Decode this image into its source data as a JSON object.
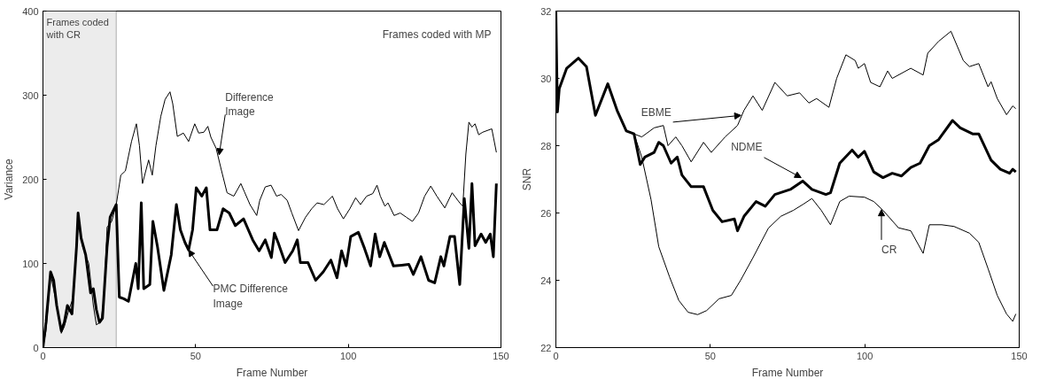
{
  "chart_data": [
    {
      "type": "line",
      "xlabel": "Frame Number",
      "ylabel": "Variance",
      "xlim": [
        0,
        150
      ],
      "ylim": [
        0,
        400
      ],
      "xticks": [
        0,
        50,
        100,
        150
      ],
      "yticks": [
        0,
        100,
        200,
        300,
        400
      ],
      "grid": false,
      "bands": [
        {
          "axis": "x",
          "from": 0,
          "to": 24,
          "label": "Frames coded with CR",
          "color": "#ececec"
        }
      ],
      "annotations": [
        "Frames coded with MP",
        {
          "text": "Difference Image",
          "x": 57.7,
          "y": 229
        },
        {
          "text": "PMC Difference Image",
          "x": 47.7,
          "y": 116
        }
      ],
      "series": [
        {
          "color": "#000000",
          "x": [
            0,
            1,
            2.5,
            4,
            6,
            7,
            8.5,
            10,
            11.5,
            13,
            15,
            16.5,
            17.5,
            19,
            20,
            21,
            22.5,
            24,
            25.5,
            27,
            29,
            30.6,
            31.6,
            32.6,
            34.6,
            35.8,
            37,
            38.6,
            40,
            41.6,
            42.5,
            44,
            46,
            47.7,
            49.7,
            51,
            52.7,
            54,
            55,
            56.7,
            58.5,
            60.3,
            62.5,
            64.8,
            66,
            67.8,
            70,
            71,
            72.8,
            74.7,
            76.5,
            78,
            80,
            81.5,
            83.7,
            86,
            88,
            89.8,
            92,
            94.8,
            96.5,
            98.4,
            100.5,
            102.4,
            104,
            106,
            108,
            109.4,
            110.5,
            112,
            113,
            115,
            117,
            119,
            121,
            123,
            125,
            127,
            129,
            131.6,
            134,
            136.5,
            137.5,
            138.5,
            139.5,
            140.5,
            141.5,
            142.7,
            144,
            145.5,
            147,
            148.5
          ],
          "values": [
            0,
            20,
            87,
            60,
            17,
            25,
            45,
            60,
            150,
            120,
            100,
            50,
            27,
            31,
            60,
            143,
            150,
            170,
            205,
            210,
            245,
            266,
            240,
            195,
            223,
            205,
            240,
            275,
            295,
            304,
            290,
            251,
            255,
            245,
            266,
            255,
            256,
            263,
            250,
            237,
            210,
            184,
            180,
            195,
            185,
            170,
            157,
            175,
            191,
            193,
            180,
            182,
            175,
            160,
            139,
            155,
            165,
            172,
            170,
            180,
            165,
            153,
            165,
            178,
            170,
            180,
            183,
            193,
            180,
            168,
            172,
            157,
            160,
            155,
            150,
            160,
            180,
            192,
            180,
            166,
            184,
            172,
            168,
            230,
            268,
            262,
            266,
            253,
            256,
            258,
            260,
            232
          ]
        },
        {
          "color": "#000000",
          "x": [
            0,
            1,
            2.5,
            3.5,
            4.5,
            6,
            7,
            8,
            9.5,
            11,
            11.5,
            12.5,
            14,
            15.6,
            16.5,
            17.5,
            18.5,
            19.5,
            21,
            22,
            24,
            25,
            26.5,
            28,
            30.4,
            31.2,
            32.2,
            33,
            35,
            36,
            37.5,
            39.6,
            42,
            43.7,
            45,
            46.5,
            47.7,
            49,
            50.2,
            52,
            53.5,
            54.7,
            57,
            59,
            61,
            63,
            65.7,
            68.7,
            70.8,
            72.8,
            74.8,
            75.8,
            77,
            79.3,
            81.8,
            83.3,
            84.3,
            86.8,
            89.3,
            91.8,
            94.3,
            96.3,
            97.8,
            99.3,
            100.8,
            103.3,
            105.3,
            107.3,
            108.8,
            110.3,
            111.8,
            114.8,
            117.5,
            119.8,
            121.3,
            123.8,
            126.3,
            128.3,
            130.3,
            131.3,
            133.3,
            134.8,
            136.5,
            138,
            139.5,
            140.5,
            141.5,
            143.5,
            145,
            146.5,
            147.5,
            148.5
          ],
          "values": [
            0,
            30,
            90,
            80,
            50,
            20,
            30,
            50,
            40,
            120,
            160,
            130,
            110,
            65,
            70,
            45,
            30,
            35,
            120,
            155,
            170,
            60,
            58,
            55,
            100,
            70,
            172,
            70,
            75,
            150,
            120,
            68,
            110,
            170,
            140,
            125,
            116,
            140,
            190,
            180,
            190,
            140,
            140,
            165,
            160,
            145,
            153,
            128,
            115,
            128,
            107,
            136,
            125,
            101,
            115,
            128,
            101,
            101,
            80,
            90,
            104,
            83,
            115,
            97,
            132,
            137,
            118,
            97,
            135,
            108,
            125,
            97,
            98,
            99,
            87,
            108,
            80,
            77,
            108,
            97,
            132,
            132,
            75,
            177,
            118,
            195,
            121,
            135,
            125,
            135,
            108,
            195
          ]
        }
      ]
    },
    {
      "type": "line",
      "xlabel": "Frame Number",
      "ylabel": "SNR",
      "xlim": [
        0,
        150
      ],
      "ylim": [
        22,
        32
      ],
      "xticks": [
        0,
        50,
        100,
        150
      ],
      "yticks": [
        22,
        24,
        26,
        28,
        30,
        32
      ],
      "grid": false,
      "annotations": [
        {
          "text": "EBME",
          "x": 59.9,
          "y": 28.9
        },
        {
          "text": "NDME",
          "x": 79.4,
          "y": 27.05
        },
        {
          "text": "CR",
          "x": 105.4,
          "y": 26.1
        }
      ],
      "series": [
        {
          "color": "#000000",
          "x": [
            0,
            0.5,
            1.1,
            3.5,
            7.3,
            9.9,
            12.8,
            16.8,
            19.8,
            22.8,
            25.3,
            27.8,
            31.8,
            34.8,
            36.3,
            38.8,
            40.8,
            43.8,
            47.8,
            50.3,
            54.8,
            58.8,
            60.9,
            63.8,
            66.8,
            70.9,
            74.9,
            78.9,
            81.9,
            84.4,
            88.4,
            90.9,
            93.9,
            96.9,
            97.9,
            99.9,
            101.9,
            104.9,
            107.4,
            108.9,
            114.9,
            118.9,
            120.4,
            123.9,
            127.9,
            131.9,
            133.9,
            136.9,
            139.9,
            140.9,
            142.9,
            145.9,
            147.9,
            148.9
          ],
          "values": [
            32,
            29,
            29.7,
            30.3,
            30.6,
            30.35,
            28.9,
            29.84,
            29.05,
            28.44,
            28.35,
            28.26,
            28.53,
            28.6,
            28,
            28.26,
            28,
            27.52,
            28.1,
            27.8,
            28.26,
            28.6,
            29.05,
            29.48,
            29.05,
            29.88,
            29.48,
            29.57,
            29.27,
            29.4,
            29.14,
            30,
            30.7,
            30.53,
            30.3,
            30.44,
            29.88,
            29.75,
            30.22,
            30,
            30.3,
            30.1,
            30.75,
            31.1,
            31.4,
            30.53,
            30.35,
            30.44,
            29.75,
            29.9,
            29.4,
            28.92,
            29.18,
            29.1
          ]
        },
        {
          "color": "#000000",
          "x": [
            0,
            0.5,
            1.1,
            3.5,
            7.3,
            9.9,
            12.8,
            16.8,
            19.8,
            22.8,
            25.3,
            27.3,
            28.8,
            31.8,
            33.3,
            34.8,
            37.3,
            39.3,
            40.8,
            43.8,
            47.8,
            50.8,
            53.8,
            57.8,
            58.8,
            60.9,
            64.8,
            67.8,
            70.9,
            75.9,
            79.9,
            82.9,
            87.4,
            88.9,
            91.9,
            95.9,
            97.9,
            99.9,
            102.9,
            105.9,
            108.9,
            111.9,
            114.9,
            117.9,
            120.9,
            123.9,
            128.4,
            130.9,
            134.9,
            136.9,
            140.9,
            143.9,
            146.9,
            147.9,
            148.9
          ],
          "values": [
            32,
            29,
            29.7,
            30.3,
            30.6,
            30.35,
            28.9,
            29.84,
            29.05,
            28.44,
            28.35,
            27.44,
            27.66,
            27.8,
            28.1,
            28,
            27.48,
            27.66,
            27.13,
            26.78,
            26.78,
            26.08,
            25.74,
            25.82,
            25.47,
            25.9,
            26.34,
            26.2,
            26.55,
            26.7,
            26.95,
            26.7,
            26.55,
            26.6,
            27.48,
            27.87,
            27.66,
            27.83,
            27.22,
            27.05,
            27.18,
            27.1,
            27.35,
            27.48,
            28,
            28.18,
            28.75,
            28.53,
            28.35,
            28.35,
            27.57,
            27.3,
            27.18,
            27.3,
            27.22
          ]
        },
        {
          "color": "#000000",
          "x": [
            0,
            0.5,
            1.1,
            3.5,
            7.3,
            9.9,
            12.8,
            16.8,
            19.8,
            22.8,
            25.3,
            27.8,
            30.8,
            33.3,
            36.8,
            39.8,
            42.8,
            45.9,
            48.8,
            52.8,
            56.8,
            59.8,
            63.8,
            68.8,
            72.8,
            76.9,
            79.9,
            82.9,
            85.9,
            88.9,
            91.9,
            94.9,
            99.9,
            102.9,
            105.9,
            110.9,
            114.9,
            118.9,
            120.9,
            124.9,
            128.9,
            133.9,
            136.9,
            139.9,
            142.9,
            145.9,
            147.9,
            148.9
          ],
          "values": [
            32,
            29,
            29.7,
            30.3,
            30.6,
            30.35,
            28.9,
            29.84,
            29.05,
            28.44,
            28.35,
            27.66,
            26.4,
            25,
            24.1,
            23.4,
            23.05,
            22.98,
            23.1,
            23.45,
            23.55,
            24,
            24.67,
            25.55,
            25.9,
            26.08,
            26.25,
            26.43,
            26.08,
            25.65,
            26.34,
            26.5,
            26.47,
            26.34,
            26.08,
            25.56,
            25.47,
            24.8,
            25.65,
            25.65,
            25.6,
            25.4,
            25.13,
            24.35,
            23.55,
            23,
            22.78,
            23
          ]
        }
      ]
    }
  ]
}
